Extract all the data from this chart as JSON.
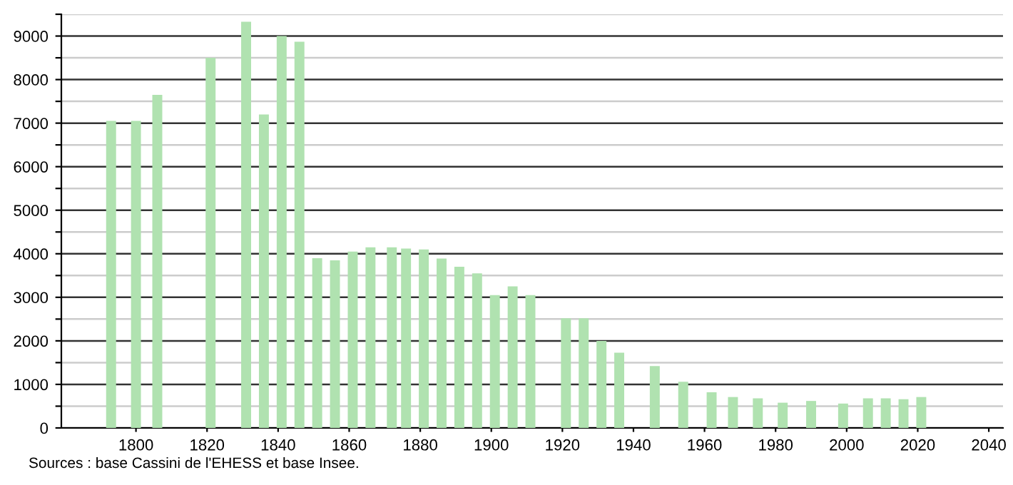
{
  "chart_data": {
    "type": "bar",
    "x": [
      1793,
      1800,
      1806,
      1821,
      1831,
      1836,
      1841,
      1846,
      1851,
      1856,
      1861,
      1866,
      1872,
      1876,
      1881,
      1886,
      1891,
      1896,
      1901,
      1906,
      1911,
      1921,
      1926,
      1931,
      1936,
      1946,
      1954,
      1962,
      1968,
      1975,
      1982,
      1990,
      1999,
      2006,
      2011,
      2016,
      2021
    ],
    "values": [
      7050,
      7050,
      7650,
      8500,
      9330,
      7200,
      9000,
      8870,
      3900,
      3850,
      4050,
      4150,
      4150,
      4120,
      4100,
      3890,
      3700,
      3550,
      3050,
      3250,
      3050,
      2520,
      2520,
      2000,
      1730,
      1420,
      1060,
      820,
      710,
      680,
      580,
      620,
      560,
      680,
      680,
      660,
      710
    ],
    "color": "#b0e2b0",
    "xlim": [
      1779,
      2044
    ],
    "xticks": [
      1800,
      1820,
      1840,
      1860,
      1880,
      1900,
      1920,
      1940,
      1960,
      1980,
      2000,
      2020,
      2040
    ],
    "ylim": [
      0,
      9500
    ],
    "yticks": [
      0,
      {
        "value": 500,
        "label": null
      },
      1000,
      {
        "value": 1500,
        "label": null
      },
      2000,
      {
        "value": 2500,
        "label": null
      },
      3000,
      {
        "value": 3500,
        "label": null
      },
      4000,
      {
        "value": 4500,
        "label": null
      },
      5000,
      {
        "value": 5500,
        "label": null
      },
      6000,
      {
        "value": 6500,
        "label": null
      },
      7000,
      {
        "value": 7500,
        "label": null
      },
      8000,
      {
        "value": 8500,
        "label": null
      },
      9000,
      {
        "value": 9500,
        "label": null
      }
    ],
    "grid": "y",
    "annotations": [
      "Sources : base Cassini de l'EHESS et base Insee."
    ]
  }
}
